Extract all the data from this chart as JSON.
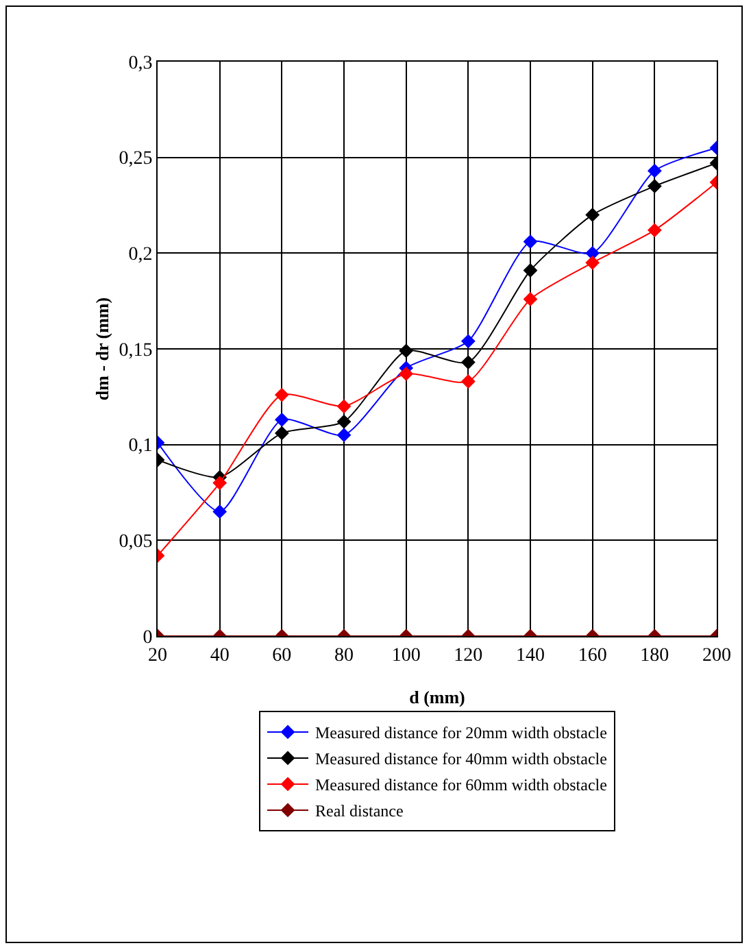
{
  "chart_data": {
    "type": "line",
    "xlabel": "d (mm)",
    "ylabel": "dm - dr (mm)",
    "x": [
      20,
      40,
      60,
      80,
      100,
      120,
      140,
      160,
      180,
      200
    ],
    "xlim": [
      20,
      200
    ],
    "xticks": [
      20,
      40,
      60,
      80,
      100,
      120,
      140,
      160,
      180,
      200
    ],
    "ylim": [
      0,
      0.3
    ],
    "yticks": [
      {
        "value": 0,
        "label": "0"
      },
      {
        "value": 0.05,
        "label": "0,05"
      },
      {
        "value": 0.1,
        "label": "0,1"
      },
      {
        "value": 0.15,
        "label": "0,15"
      },
      {
        "value": 0.2,
        "label": "0,2"
      },
      {
        "value": 0.25,
        "label": "0,25"
      },
      {
        "value": 0.3,
        "label": "0,3"
      }
    ],
    "grid": true,
    "legend": "bottom",
    "marker": "diamond",
    "line_style": "solid",
    "series": [
      {
        "name": "Measured distance for 20mm width obstacle",
        "color": "#0000ff",
        "values": [
          0.101,
          0.065,
          0.113,
          0.105,
          0.14,
          0.154,
          0.206,
          0.2,
          0.243,
          0.255
        ]
      },
      {
        "name": "Measured distance for 40mm width obstacle",
        "color": "#000000",
        "values": [
          0.092,
          0.083,
          0.106,
          0.112,
          0.149,
          0.143,
          0.191,
          0.22,
          0.235,
          0.247
        ]
      },
      {
        "name": "Measured distance for 60mm width obstacle",
        "color": "#ff0000",
        "values": [
          0.042,
          0.08,
          0.126,
          0.12,
          0.137,
          0.133,
          0.176,
          0.195,
          0.212,
          0.237
        ]
      },
      {
        "name": "Real distance",
        "color": "#800000",
        "values": [
          0,
          0,
          0,
          0,
          0,
          0,
          0,
          0,
          0,
          0
        ]
      }
    ]
  }
}
